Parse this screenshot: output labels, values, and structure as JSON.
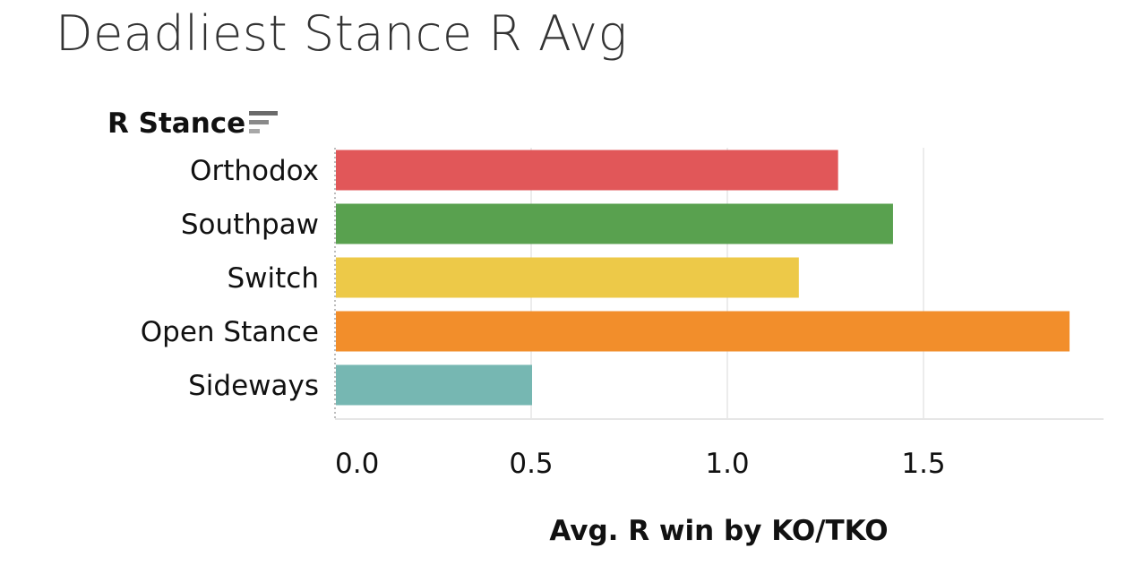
{
  "title": "Deadliest Stance R Avg",
  "row_header": "R Stance",
  "sort_icon": "sort-descending-icon",
  "chart_data": {
    "type": "bar",
    "orientation": "horizontal",
    "title": "Deadliest Stance R Avg",
    "categories": [
      "Orthodox",
      "Southpaw",
      "Switch",
      "Open Stance",
      "Sideways"
    ],
    "values": [
      1.28,
      1.42,
      1.18,
      1.87,
      0.5
    ],
    "colors": [
      "#e15759",
      "#59a14f",
      "#edc948",
      "#f28e2b",
      "#76b7b2"
    ],
    "xlabel": "Avg. R win by KO/TKO",
    "ylabel": "R Stance",
    "xlim": [
      0,
      1.95
    ],
    "xticks": [
      0.0,
      0.5,
      1.0,
      1.5
    ],
    "xtick_labels": [
      "0.0",
      "0.5",
      "1.0",
      "1.5"
    ],
    "grid": true
  }
}
